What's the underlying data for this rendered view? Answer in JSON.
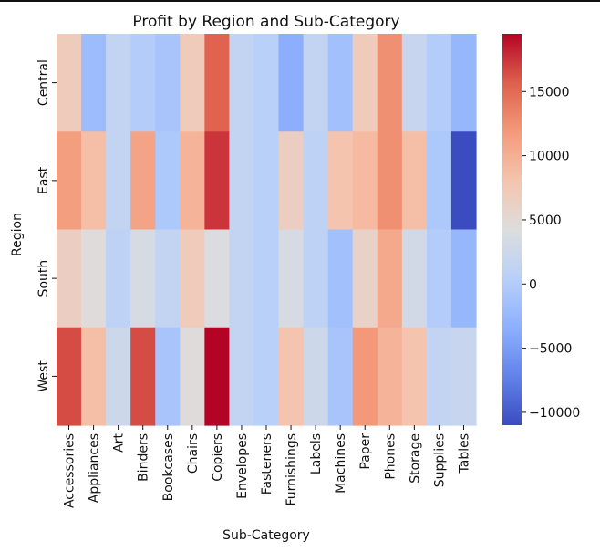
{
  "chart_data": {
    "type": "heatmap",
    "title": "Profit by Region and Sub-Category",
    "xlabel": "Sub-Category",
    "ylabel": "Region",
    "x_categories": [
      "Accessories",
      "Appliances",
      "Art",
      "Binders",
      "Bookcases",
      "Chairs",
      "Copiers",
      "Envelopes",
      "Fasteners",
      "Furnishings",
      "Labels",
      "Machines",
      "Paper",
      "Phones",
      "Storage",
      "Supplies",
      "Tables"
    ],
    "y_categories": [
      "Central",
      "East",
      "South",
      "West"
    ],
    "values": [
      [
        7000,
        -2000,
        1500,
        0,
        -1000,
        7000,
        15500,
        1500,
        500,
        -3500,
        1500,
        -1500,
        7000,
        12500,
        2000,
        0,
        -2500
      ],
      [
        11500,
        8500,
        1500,
        11000,
        -500,
        9500,
        17500,
        1500,
        500,
        6500,
        1000,
        8000,
        9000,
        12500,
        8500,
        -500,
        -11000
      ],
      [
        6500,
        4500,
        1000,
        3500,
        1500,
        7000,
        4000,
        1500,
        500,
        3500,
        1000,
        -1500,
        6000,
        10500,
        3000,
        0,
        -2500
      ],
      [
        16500,
        8500,
        2500,
        16500,
        -1000,
        4500,
        19500,
        1500,
        500,
        8000,
        2500,
        -1000,
        12000,
        9500,
        8000,
        1500,
        2000
      ]
    ],
    "colorbar": {
      "cmap": "coolwarm",
      "min": -11000,
      "max": 19500,
      "ticks": [
        -10000,
        -5000,
        0,
        5000,
        10000,
        15000
      ],
      "tick_labels": [
        "−10000",
        "−5000",
        "0",
        "5000",
        "10000",
        "15000"
      ]
    },
    "grid": false
  }
}
